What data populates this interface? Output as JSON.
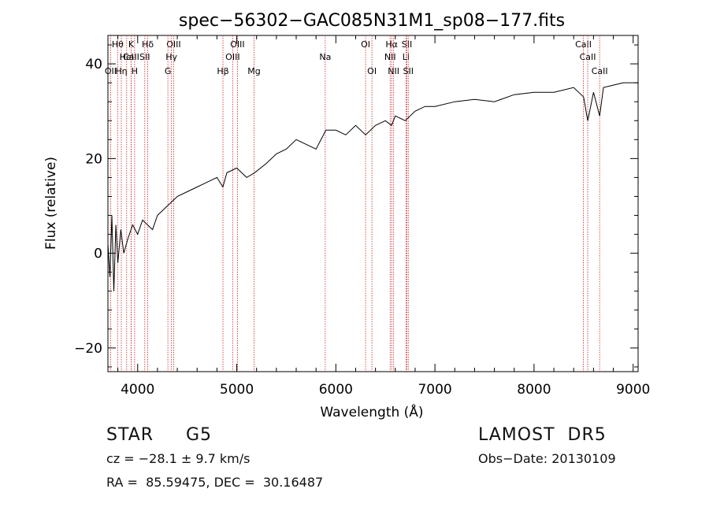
{
  "chart_data": {
    "type": "line",
    "title": "spec−56302−GAC085N31M1_sp08−177.fits",
    "xlabel": "Wavelength (Å)",
    "ylabel": "Flux (relative)",
    "xlim": [
      3700,
      9050
    ],
    "ylim": [
      -25,
      46
    ],
    "xticks": [
      4000,
      5000,
      6000,
      7000,
      8000,
      9000
    ],
    "yticks": [
      -20,
      0,
      20,
      40
    ],
    "grid": false,
    "line_color": "#000000",
    "marker_color": "#cc2222",
    "series": [
      {
        "x": [
          3700,
          3720,
          3740,
          3760,
          3780,
          3800,
          3830,
          3860,
          3900,
          3950,
          4000,
          4050,
          4100,
          4150,
          4200,
          4300,
          4400,
          4500,
          4600,
          4700,
          4800,
          4860,
          4900,
          5000,
          5100,
          5180,
          5300,
          5400,
          5500,
          5600,
          5700,
          5800,
          5900,
          6000,
          6100,
          6200,
          6300,
          6400,
          6500,
          6563,
          6600,
          6700,
          6800,
          6900,
          7000,
          7200,
          7400,
          7600,
          7800,
          8000,
          8200,
          8400,
          8500,
          8542,
          8600,
          8662,
          8700,
          8800,
          8900,
          9000,
          9050
        ],
        "y": [
          2,
          -5,
          8,
          -8,
          6,
          -2,
          5,
          0,
          3,
          6,
          4,
          7,
          6,
          5,
          8,
          10,
          12,
          13,
          14,
          15,
          16,
          14,
          17,
          18,
          16,
          17,
          19,
          21,
          22,
          24,
          23,
          22,
          26,
          26,
          25,
          27,
          25,
          27,
          28,
          27,
          29,
          28,
          30,
          31,
          31,
          32,
          32.5,
          32,
          33.5,
          34,
          34,
          35,
          33,
          28,
          34,
          29,
          35,
          35.5,
          36,
          36,
          36
        ]
      }
    ],
    "spectral_lines": [
      {
        "label": "OΙΙ",
        "wavelength": 3727,
        "row": 3
      },
      {
        "label": "Hθ",
        "wavelength": 3798,
        "row": 1
      },
      {
        "label": "CaΙΙ",
        "wavelength": 3934,
        "row": 2
      },
      {
        "label": "Hη",
        "wavelength": 3835,
        "row": 3
      },
      {
        "label": "K",
        "wavelength": 3934,
        "row": 1
      },
      {
        "label": "HeI",
        "wavelength": 3889,
        "row": 2
      },
      {
        "label": "H",
        "wavelength": 3969,
        "row": 3
      },
      {
        "label": "Hδ",
        "wavelength": 4102,
        "row": 1
      },
      {
        "label": "SΙΙ",
        "wavelength": 4072,
        "row": 2
      },
      {
        "label": "OΙΙΙ",
        "wavelength": 4363,
        "row": 1
      },
      {
        "label": "Hγ",
        "wavelength": 4341,
        "row": 2
      },
      {
        "label": "G",
        "wavelength": 4305,
        "row": 3
      },
      {
        "label": "Hβ",
        "wavelength": 4861,
        "row": 3
      },
      {
        "label": "OΙΙΙ",
        "wavelength": 5007,
        "row": 1
      },
      {
        "label": "OΙΙΙ",
        "wavelength": 4959,
        "row": 2
      },
      {
        "label": "Mg",
        "wavelength": 5175,
        "row": 3
      },
      {
        "label": "Na",
        "wavelength": 5893,
        "row": 2
      },
      {
        "label": "OΙ",
        "wavelength": 6300,
        "row": 1
      },
      {
        "label": "OΙ",
        "wavelength": 6364,
        "row": 3
      },
      {
        "label": "Hα",
        "wavelength": 6563,
        "row": 1
      },
      {
        "label": "NΙΙ",
        "wavelength": 6548,
        "row": 2
      },
      {
        "label": "NΙΙ",
        "wavelength": 6583,
        "row": 3
      },
      {
        "label": "SΙΙ",
        "wavelength": 6717,
        "row": 1
      },
      {
        "label": "Li",
        "wavelength": 6708,
        "row": 2
      },
      {
        "label": "SΙΙ",
        "wavelength": 6731,
        "row": 3
      },
      {
        "label": "CaΙΙ",
        "wavelength": 8498,
        "row": 1
      },
      {
        "label": "CaΙΙ",
        "wavelength": 8542,
        "row": 2
      },
      {
        "label": "CaΙΙ",
        "wavelength": 8662,
        "row": 3
      }
    ]
  },
  "info": {
    "object_class": "STAR",
    "subclass": "G5",
    "survey": "LAMOST  DR5",
    "redshift": "cz = −28.1 ± 9.7 km/s",
    "obs_date": "Obs−Date: 20130109",
    "coords": "RA =  85.59475, DEC =  30.16487"
  }
}
